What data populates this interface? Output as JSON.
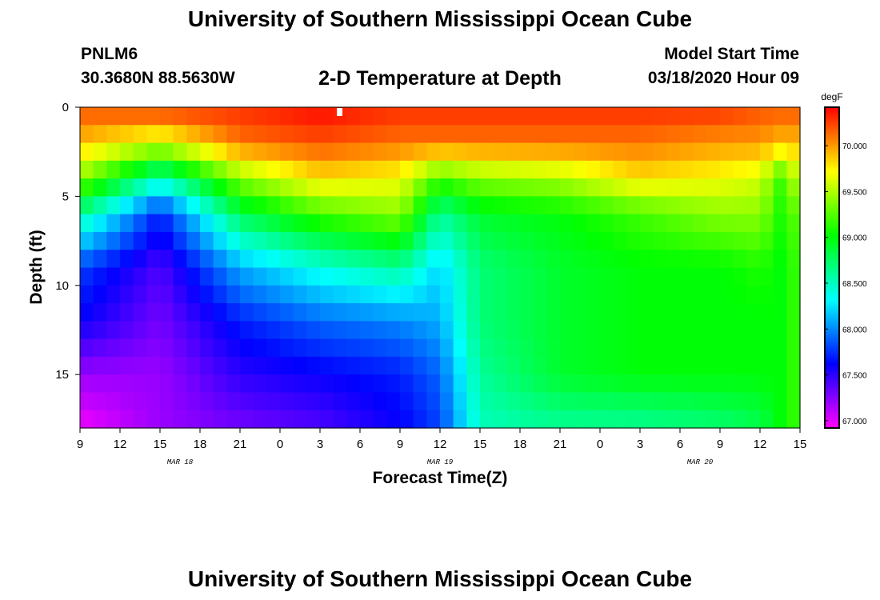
{
  "header": {
    "title": "University of Southern Mississippi Ocean Cube",
    "station_id": "PNLM6",
    "station_coords": "30.3680N 88.5630W",
    "plot_title": "2-D Temperature at Depth",
    "start_label": "Model Start Time",
    "start_value": "03/18/2020 Hour 09"
  },
  "footer": {
    "title": "University of Southern Mississippi Ocean Cube"
  },
  "chart_data": {
    "type": "heatmap",
    "title": "2-D Temperature at Depth",
    "xlabel": "Forecast Time(Z)",
    "ylabel": "Depth (ft)",
    "x_ticks": [
      {
        "hour": 0,
        "label": "9"
      },
      {
        "hour": 3,
        "label": "12"
      },
      {
        "hour": 6,
        "label": "15"
      },
      {
        "hour": 9,
        "label": "18"
      },
      {
        "hour": 12,
        "label": "21"
      },
      {
        "hour": 15,
        "label": "0"
      },
      {
        "hour": 18,
        "label": "3"
      },
      {
        "hour": 21,
        "label": "6"
      },
      {
        "hour": 24,
        "label": "9"
      },
      {
        "hour": 27,
        "label": "12"
      },
      {
        "hour": 30,
        "label": "15"
      },
      {
        "hour": 33,
        "label": "18"
      },
      {
        "hour": 36,
        "label": "21"
      },
      {
        "hour": 39,
        "label": "0"
      },
      {
        "hour": 42,
        "label": "3"
      },
      {
        "hour": 45,
        "label": "6"
      },
      {
        "hour": 48,
        "label": "9"
      },
      {
        "hour": 51,
        "label": "12"
      },
      {
        "hour": 54,
        "label": "15"
      }
    ],
    "date_labels": [
      {
        "hour": 7.5,
        "label": "MAR 18"
      },
      {
        "hour": 27,
        "label": "MAR 19"
      },
      {
        "hour": 46.5,
        "label": "MAR 20"
      }
    ],
    "xlim_hours": [
      0,
      54
    ],
    "y_ticks": [
      0,
      5,
      10,
      15
    ],
    "ylim": [
      0,
      18
    ],
    "colorbar": {
      "unit": "degF",
      "range": [
        66.92,
        70.42
      ],
      "ticks": [
        "67.000",
        "67.500",
        "68.000",
        "68.500",
        "69.000",
        "69.500",
        "70.000"
      ]
    },
    "grid": {
      "times_hours": [
        0,
        6,
        12,
        18,
        24,
        27,
        30,
        36,
        42,
        48,
        51,
        52.5,
        54
      ],
      "depths_ft": [
        0,
        2,
        4,
        6,
        9,
        12,
        15,
        18
      ],
      "values_degF": [
        [
          70.2,
          70.3,
          70.3,
          70.4,
          70.3,
          70.3,
          70.3,
          70.3,
          70.3,
          70.3,
          70.2,
          70.2,
          70.2
        ],
        [
          69.9,
          69.6,
          70.1,
          70.2,
          70.1,
          70.1,
          70.1,
          70.1,
          70.1,
          70.0,
          70.0,
          69.9,
          69.9
        ],
        [
          69.4,
          68.5,
          69.4,
          69.8,
          69.7,
          69.2,
          69.4,
          69.5,
          69.8,
          69.7,
          69.6,
          69.2,
          69.6
        ],
        [
          68.6,
          67.7,
          68.8,
          69.2,
          69.4,
          68.6,
          68.9,
          69.0,
          69.2,
          69.4,
          69.4,
          69.1,
          69.3
        ],
        [
          67.8,
          67.4,
          68.1,
          68.4,
          68.6,
          68.2,
          68.7,
          68.9,
          69.0,
          69.0,
          69.1,
          69.0,
          69.2
        ],
        [
          67.6,
          67.3,
          67.7,
          67.9,
          68.0,
          68.1,
          68.7,
          68.9,
          69.0,
          69.0,
          69.0,
          69.0,
          69.2
        ],
        [
          67.2,
          67.2,
          67.5,
          67.6,
          67.7,
          67.9,
          68.6,
          68.9,
          69.0,
          69.0,
          69.0,
          69.0,
          69.2
        ],
        [
          66.95,
          67.2,
          67.3,
          67.4,
          67.6,
          67.8,
          68.5,
          68.6,
          68.6,
          68.7,
          68.8,
          69.0,
          69.2
        ]
      ]
    }
  }
}
